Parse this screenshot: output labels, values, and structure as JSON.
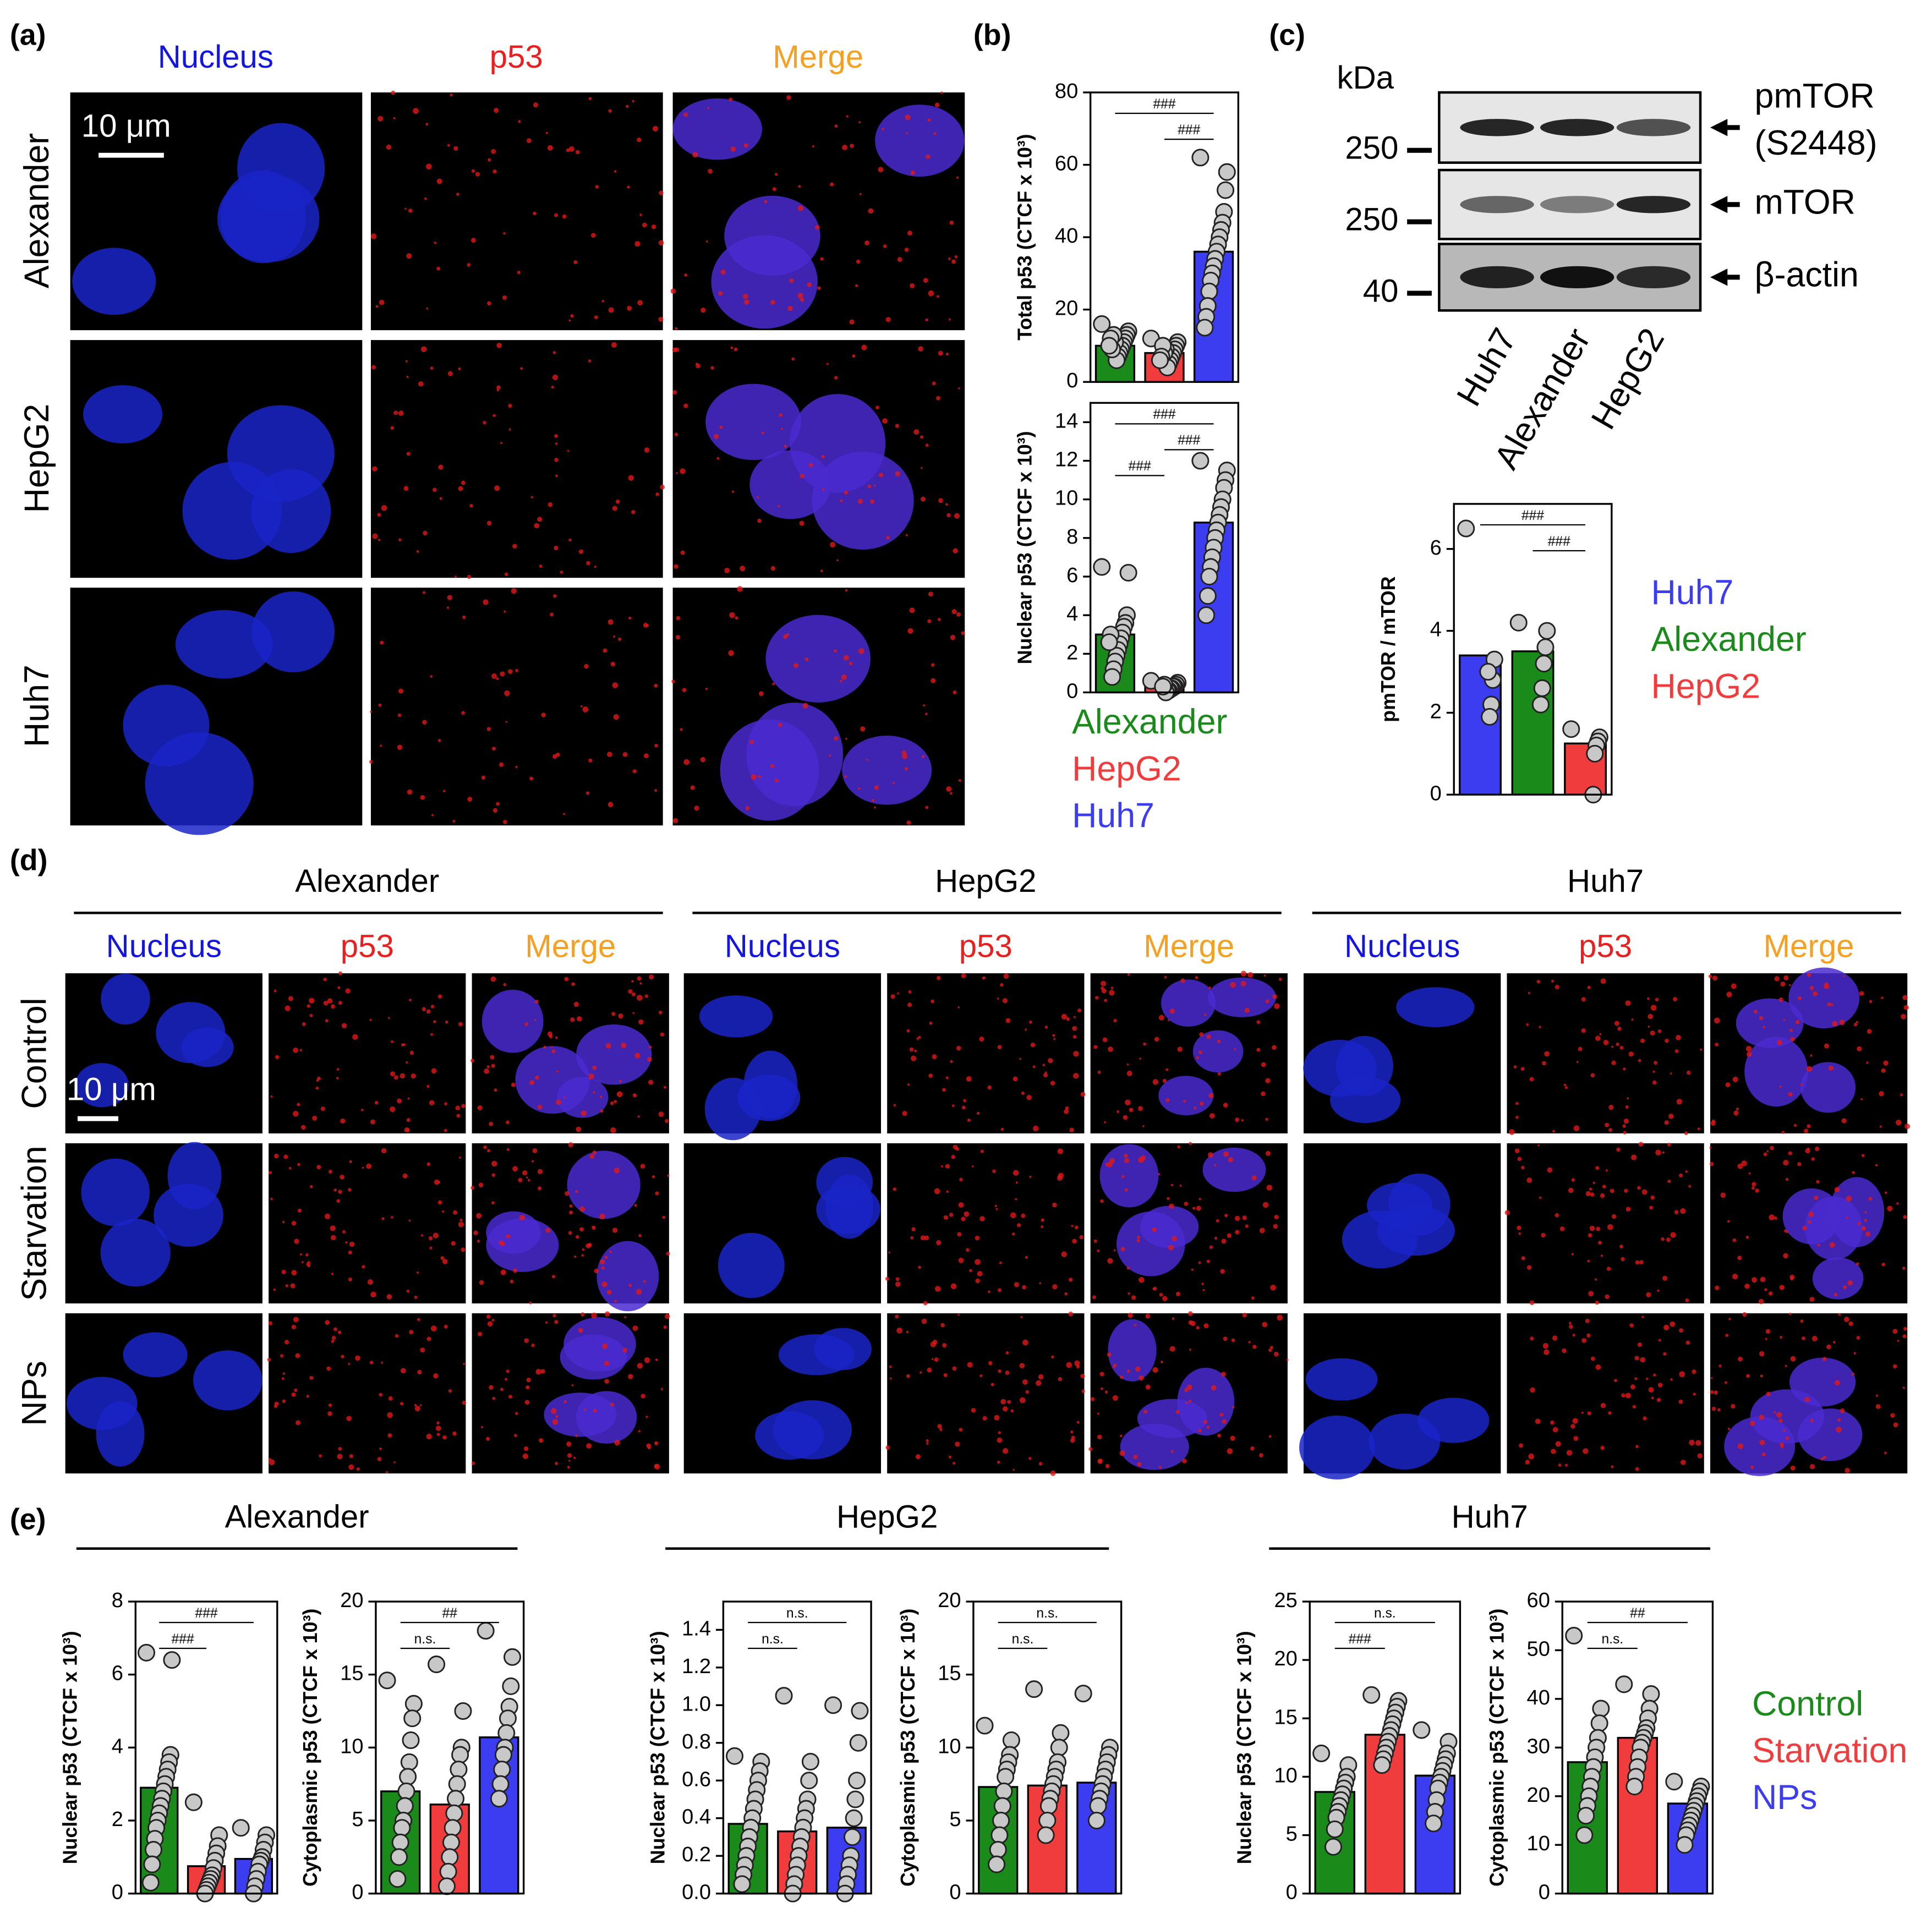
{
  "panel_labels": [
    "(a)",
    "(b)",
    "(c)",
    "(d)",
    "(e)"
  ],
  "panel_a": {
    "columns": [
      "Nucleus",
      "p53",
      "Merge"
    ],
    "column_colors": [
      "#1515e0",
      "#e82020",
      "#f5a020"
    ],
    "rows": [
      "Alexander",
      "HepG2",
      "Huh7"
    ],
    "scale_bar": "10 μm"
  },
  "panel_c_blot": {
    "unit": "kDa",
    "markers": [
      250,
      250,
      40
    ],
    "bands": [
      {
        "lines": [
          "pmTOR",
          "(S2448)"
        ]
      },
      {
        "lines": [
          "mTOR"
        ]
      },
      {
        "lines": [
          "β-actin"
        ]
      }
    ],
    "lanes": [
      "Huh7",
      "Alexander",
      "HepG2"
    ]
  },
  "panel_d": {
    "groups": [
      "Alexander",
      "HepG2",
      "Huh7"
    ],
    "columns": [
      "Nucleus",
      "p53",
      "Merge"
    ],
    "column_colors": [
      "#1515e0",
      "#e82020",
      "#f5a020"
    ],
    "rows": [
      "Control",
      "Starvation",
      "NPs"
    ],
    "scale_bar": "10 μm"
  },
  "panel_e": {
    "groups": [
      "Alexander",
      "HepG2",
      "Huh7"
    ]
  },
  "chart_data": [
    {
      "type": "bar",
      "ylabel": "Total p53 (CTCF x 10³)",
      "categories": [
        "Alexander",
        "HepG2",
        "Huh7"
      ],
      "colors": [
        "#1a8a1a",
        "#f03c3c",
        "#3c3cf0"
      ],
      "values": [
        10,
        8,
        36
      ],
      "points": [
        [
          16,
          14,
          13,
          12,
          11,
          10,
          9,
          8,
          7,
          6,
          11,
          13,
          9,
          12,
          10
        ],
        [
          12,
          11,
          10,
          9,
          8,
          7,
          6,
          5,
          4,
          9,
          8,
          10,
          7,
          6
        ],
        [
          62,
          58,
          53,
          47,
          44,
          42,
          40,
          38,
          36,
          34,
          32,
          30,
          28,
          25,
          21,
          18,
          15
        ]
      ],
      "ylim": [
        0,
        80
      ],
      "yticks": [
        0,
        20,
        40,
        60,
        80
      ],
      "brackets": [
        {
          "label": "###",
          "between": [
            "Alexander",
            "Huh7"
          ]
        },
        {
          "label": "###",
          "between": [
            "HepG2",
            "Huh7"
          ]
        }
      ],
      "legend": false
    },
    {
      "type": "bar",
      "ylabel": "Nuclear p53 (CTCF x 10³)",
      "categories": [
        "Alexander",
        "HepG2",
        "Huh7"
      ],
      "colors": [
        "#1a8a1a",
        "#f03c3c",
        "#3c3cf0"
      ],
      "values": [
        3.0,
        0.35,
        8.8
      ],
      "points": [
        [
          6.5,
          6.2,
          4.0,
          3.6,
          3.4,
          3.1,
          2.8,
          2.5,
          2.2,
          1.9,
          1.6,
          1.2,
          0.8,
          3.0,
          2.6
        ],
        [
          0.6,
          0.5,
          0.4,
          0.3,
          0.3,
          0.2,
          0.2,
          0.1,
          0.1,
          0.0,
          0.4,
          0.3
        ],
        [
          12,
          11.5,
          11,
          10.6,
          10,
          9.6,
          9.2,
          8.8,
          8.4,
          8,
          7.5,
          7,
          6.5,
          6,
          5,
          4
        ]
      ],
      "ylim": [
        0,
        15
      ],
      "yticks": [
        0,
        2,
        4,
        6,
        8,
        10,
        12,
        14
      ],
      "brackets": [
        {
          "label": "###",
          "between": [
            "Alexander",
            "Huh7"
          ]
        },
        {
          "label": "###",
          "between": [
            "HepG2",
            "Huh7"
          ]
        },
        {
          "label": "###",
          "between": [
            "Alexander",
            "HepG2"
          ]
        }
      ],
      "legend": true
    },
    {
      "type": "bar",
      "ylabel": "pmTOR / mTOR",
      "categories": [
        "Huh7",
        "Alexander",
        "HepG2"
      ],
      "colors": [
        "#3c3cf0",
        "#1a8a1a",
        "#f03c3c"
      ],
      "values": [
        3.4,
        3.5,
        1.25
      ],
      "points": [
        [
          6.5,
          3.3,
          2.8,
          2.2,
          1.9,
          3.0
        ],
        [
          4.2,
          4.0,
          3.6,
          3.2,
          2.6,
          2.2
        ],
        [
          1.6,
          1.4,
          1.3,
          1.2,
          1.0,
          0
        ]
      ],
      "ylim": [
        0,
        7.1
      ],
      "yticks": [
        0,
        2,
        4,
        6
      ],
      "brackets": [
        {
          "label": "###",
          "between": [
            "Huh7",
            "HepG2"
          ]
        },
        {
          "label": "###",
          "between": [
            "Alexander",
            "HepG2"
          ]
        }
      ],
      "legend": true
    },
    {
      "type": "bar",
      "ylabel": "Nuclear p53 (CTCF x 10³)",
      "categories": [
        "Control",
        "Starvation",
        "NPs"
      ],
      "colors": [
        "#1a8a1a",
        "#f03c3c",
        "#3c3cf0"
      ],
      "values": [
        2.9,
        0.75,
        0.95
      ],
      "points": [
        [
          6.6,
          6.4,
          3.8,
          3.6,
          3.4,
          3.2,
          3.0,
          2.8,
          2.6,
          2.4,
          2.2,
          2,
          1.8,
          1.5,
          1.2,
          0.8,
          0.3
        ],
        [
          2.5,
          1.6,
          1.3,
          1.1,
          0.9,
          0.7,
          0.5,
          0.4,
          0.3,
          0.2,
          0.1,
          0.0
        ],
        [
          1.8,
          1.6,
          1.4,
          1.2,
          1.0,
          0.9,
          0.8,
          0.6,
          0.4,
          0.2,
          0.0
        ]
      ],
      "ylim": [
        0,
        8
      ],
      "yticks": [
        0,
        2,
        4,
        6,
        8
      ],
      "brackets": [
        {
          "label": "###",
          "between": [
            "Control",
            "NPs"
          ]
        },
        {
          "label": "###",
          "between": [
            "Control",
            "Starvation"
          ]
        }
      ],
      "legend": false
    },
    {
      "type": "bar",
      "ylabel": "Cytoplasmic p53 (CTCF x 10³)",
      "categories": [
        "Control",
        "Starvation",
        "NPs"
      ],
      "colors": [
        "#1a8a1a",
        "#f03c3c",
        "#3c3cf0"
      ],
      "values": [
        7.0,
        6.1,
        10.7
      ],
      "points": [
        [
          14.6,
          13,
          12,
          10.5,
          9,
          8,
          7,
          6,
          5,
          4.5,
          3.5,
          2.5,
          1
        ],
        [
          15.7,
          12.5,
          10,
          9.5,
          8.5,
          7.5,
          6.5,
          5.5,
          4.5,
          3.5,
          2.5,
          1.5,
          0.5
        ],
        [
          18,
          16.2,
          14.2,
          12.8,
          12,
          11,
          10,
          9.5,
          8.5,
          7.5,
          6.5
        ]
      ],
      "ylim": [
        0,
        20
      ],
      "yticks": [
        0,
        5,
        10,
        15,
        20
      ],
      "brackets": [
        {
          "label": "##",
          "between": [
            "Control",
            "NPs"
          ]
        },
        {
          "label": "n.s.",
          "between": [
            "Control",
            "Starvation"
          ]
        }
      ],
      "legend": false
    },
    {
      "type": "bar",
      "ylabel": "Nuclear p53 (CTCF x 10³)",
      "categories": [
        "Control",
        "Starvation",
        "NPs"
      ],
      "colors": [
        "#1a8a1a",
        "#f03c3c",
        "#3c3cf0"
      ],
      "values": [
        0.37,
        0.33,
        0.35
      ],
      "points": [
        [
          0.73,
          0.7,
          0.65,
          0.6,
          0.55,
          0.5,
          0.45,
          0.4,
          0.35,
          0.3,
          0.25,
          0.2,
          0.15,
          0.1,
          0.05
        ],
        [
          1.05,
          0.7,
          0.6,
          0.5,
          0.45,
          0.4,
          0.35,
          0.3,
          0.25,
          0.2,
          0.15,
          0.1,
          0.05,
          0.0
        ],
        [
          1.0,
          0.97,
          0.8,
          0.6,
          0.5,
          0.4,
          0.3,
          0.2,
          0.15,
          0.1,
          0.05,
          0.0
        ]
      ],
      "ylim": [
        0,
        1.55
      ],
      "yticks": [
        {
          "value": 0,
          "label": "0.0"
        },
        0.2,
        0.4,
        0.6,
        0.8,
        {
          "value": 1,
          "label": "1.0"
        },
        1.2,
        1.4
      ],
      "brackets": [
        {
          "label": "n.s.",
          "between": [
            "Control",
            "NPs"
          ]
        },
        {
          "label": "n.s.",
          "between": [
            "Control",
            "Starvation"
          ]
        }
      ],
      "legend": false
    },
    {
      "type": "bar",
      "ylabel": "Cytoplasmic p53 (CTCF x 10³)",
      "categories": [
        "Control",
        "Starvation",
        "NPs"
      ],
      "colors": [
        "#1a8a1a",
        "#f03c3c",
        "#3c3cf0"
      ],
      "values": [
        7.3,
        7.4,
        7.6
      ],
      "points": [
        [
          11.5,
          10.5,
          9.5,
          9,
          8.5,
          8,
          7,
          6,
          5,
          4,
          3,
          2
        ],
        [
          14,
          11,
          10,
          9,
          8.5,
          8,
          7.5,
          7,
          6.5,
          6,
          5,
          4
        ],
        [
          13.7,
          10,
          9.5,
          9,
          8.5,
          8,
          7.5,
          7,
          6.5,
          6,
          5
        ]
      ],
      "ylim": [
        0,
        20
      ],
      "yticks": [
        0,
        5,
        10,
        15,
        20
      ],
      "brackets": [
        {
          "label": "n.s.",
          "between": [
            "Control",
            "NPs"
          ]
        },
        {
          "label": "n.s.",
          "between": [
            "Control",
            "Starvation"
          ]
        }
      ],
      "legend": false
    },
    {
      "type": "bar",
      "ylabel": "Nuclear p53 (CTCF x 10³)",
      "categories": [
        "Control",
        "Starvation",
        "NPs"
      ],
      "colors": [
        "#1a8a1a",
        "#f03c3c",
        "#3c3cf0"
      ],
      "values": [
        8.7,
        13.6,
        10.1
      ],
      "points": [
        [
          12,
          11,
          10,
          9.5,
          9,
          8.5,
          8,
          7.5,
          7,
          6.5,
          5.5,
          4
        ],
        [
          17,
          16.5,
          16,
          15.5,
          15,
          14.5,
          14,
          13.5,
          13,
          12.5,
          12,
          11.5,
          11
        ],
        [
          14,
          13,
          12,
          11.5,
          11,
          10.5,
          10,
          9.5,
          9,
          8,
          7,
          6
        ]
      ],
      "ylim": [
        0,
        25
      ],
      "yticks": [
        0,
        5,
        10,
        15,
        20,
        25
      ],
      "brackets": [
        {
          "label": "n.s.",
          "between": [
            "Control",
            "NPs"
          ]
        },
        {
          "label": "###",
          "between": [
            "Control",
            "Starvation"
          ]
        }
      ],
      "legend": false
    },
    {
      "type": "bar",
      "ylabel": "Cytoplasmic p53 (CTCF x 10³)",
      "categories": [
        "Control",
        "Starvation",
        "NPs"
      ],
      "colors": [
        "#1a8a1a",
        "#f03c3c",
        "#3c3cf0"
      ],
      "values": [
        27,
        32,
        18.5
      ],
      "points": [
        [
          53,
          38,
          35,
          32,
          30,
          28,
          26,
          24,
          22,
          20,
          18,
          16,
          12
        ],
        [
          43,
          41,
          38,
          36,
          34,
          33,
          32,
          31,
          30,
          28,
          26,
          24,
          22
        ],
        [
          23,
          22,
          21,
          20,
          19,
          18,
          17,
          16,
          15,
          14,
          13,
          12,
          10
        ]
      ],
      "ylim": [
        0,
        60
      ],
      "yticks": [
        0,
        10,
        20,
        30,
        40,
        50,
        60
      ],
      "brackets": [
        {
          "label": "##",
          "between": [
            "Control",
            "NPs"
          ]
        },
        {
          "label": "n.s.",
          "between": [
            "Control",
            "Starvation"
          ]
        }
      ],
      "legend": true
    }
  ]
}
